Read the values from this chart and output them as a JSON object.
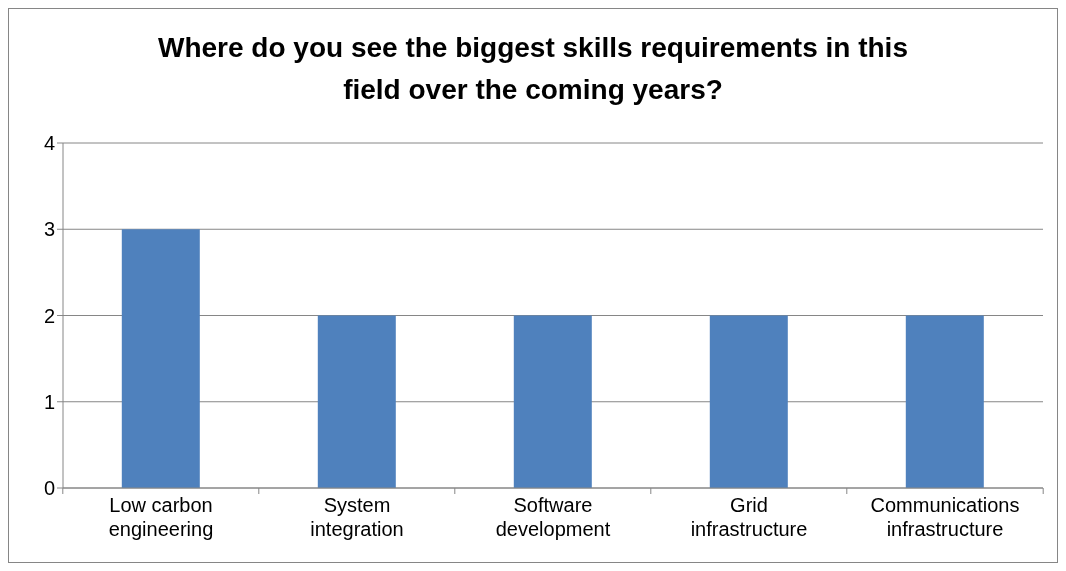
{
  "chart_data": {
    "type": "bar",
    "title": "Where do you see the biggest skills requirements in this field over the coming years?",
    "categories": [
      "Low carbon engineering",
      "System integration",
      "Software development",
      "Grid infrastructure",
      "Communications infrastructure"
    ],
    "values": [
      3,
      2,
      2,
      2,
      2
    ],
    "color": "#4f81bd",
    "ylim": [
      0,
      4
    ],
    "yticks": [
      0,
      1,
      2,
      3,
      4
    ],
    "grid": "y",
    "legend": false
  }
}
